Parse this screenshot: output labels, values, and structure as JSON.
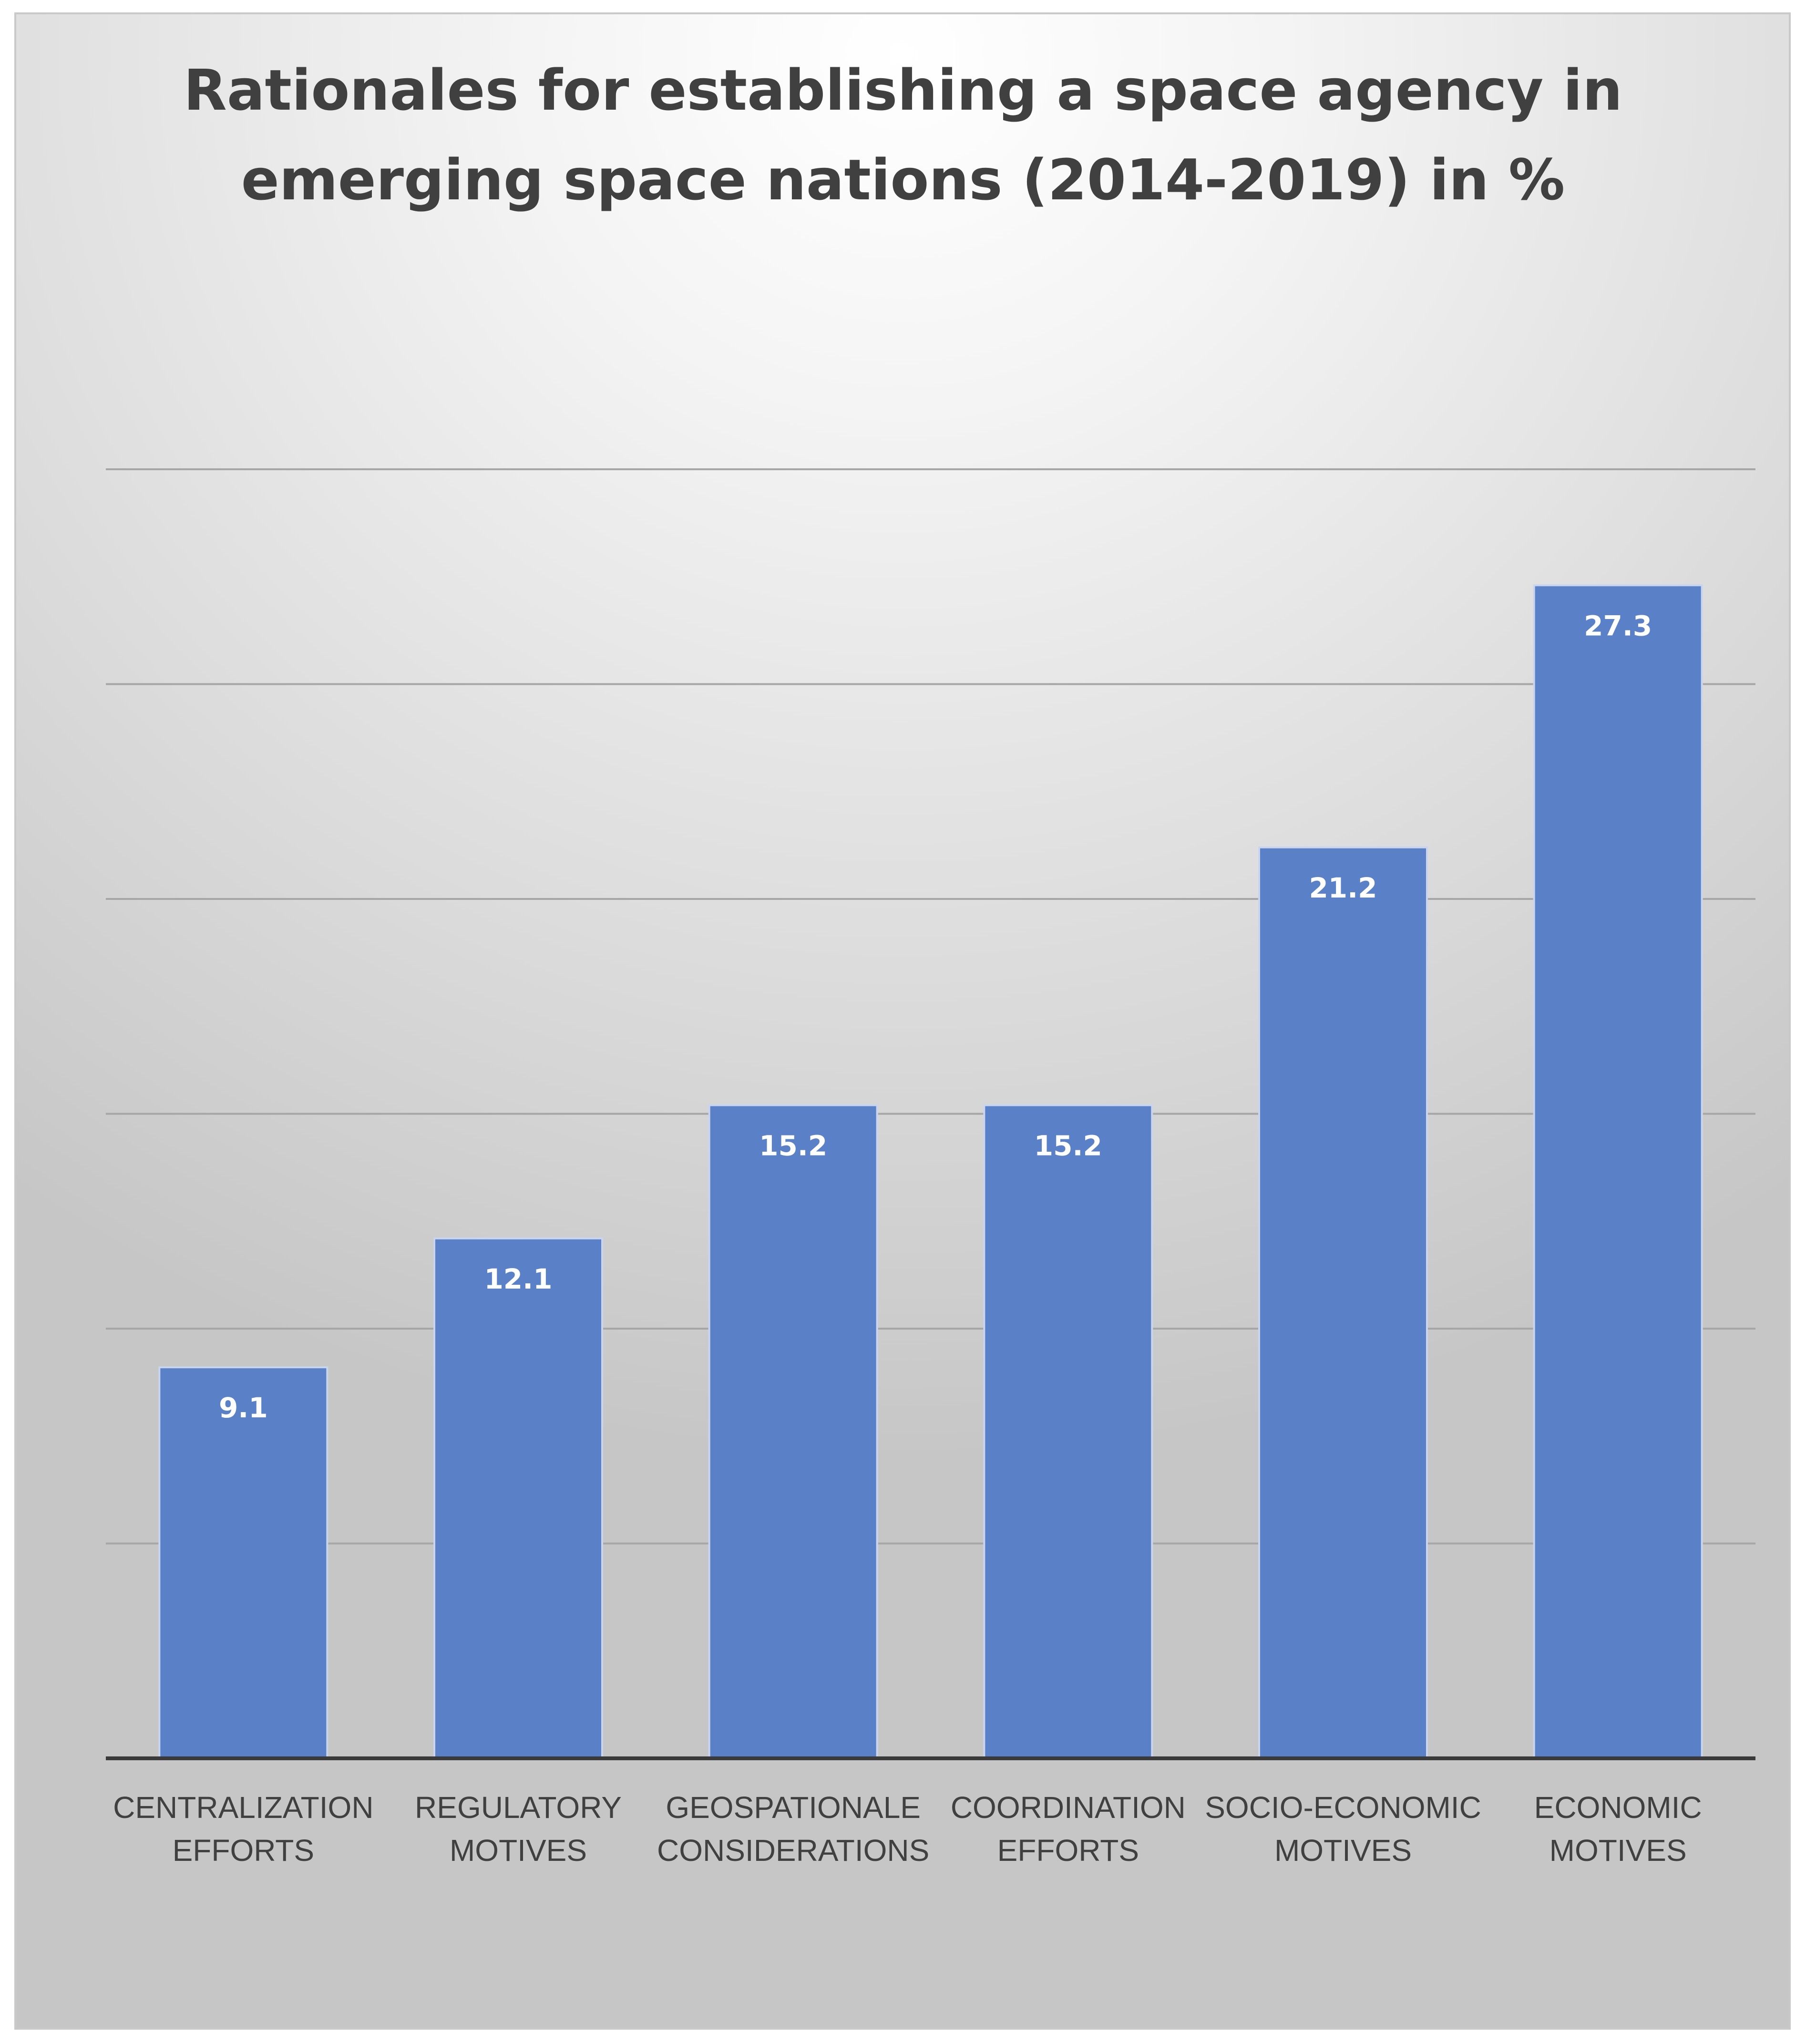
{
  "chart_data": {
    "type": "bar",
    "title_lines": [
      "Rationales for establishing a space agency in",
      "emerging space nations (2014-2019) in %"
    ],
    "categories": [
      [
        "CENTRALIZATION",
        "EFFORTS"
      ],
      [
        "REGULATORY",
        "MOTIVES"
      ],
      [
        "GEOSPATIONALE",
        "CONSIDERATIONS"
      ],
      [
        "COORDINATION",
        "EFFORTS"
      ],
      [
        "SOCIO-ECONOMIC",
        "MOTIVES"
      ],
      [
        "ECONOMIC",
        "MOTIVES"
      ]
    ],
    "values": [
      9.1,
      12.1,
      15.2,
      15.2,
      21.2,
      27.3
    ],
    "data_labels": [
      "9.1",
      "12.1",
      "15.2",
      "15.2",
      "21.2",
      "27.3"
    ],
    "ylim": [
      0,
      30
    ],
    "grid_step": 5,
    "grid": true,
    "bar_color": "#5a80c8",
    "bar_edge_color": "#c9d5ee",
    "grid_color": "#a6a6a6",
    "axis_color": "#3a3a3a"
  }
}
